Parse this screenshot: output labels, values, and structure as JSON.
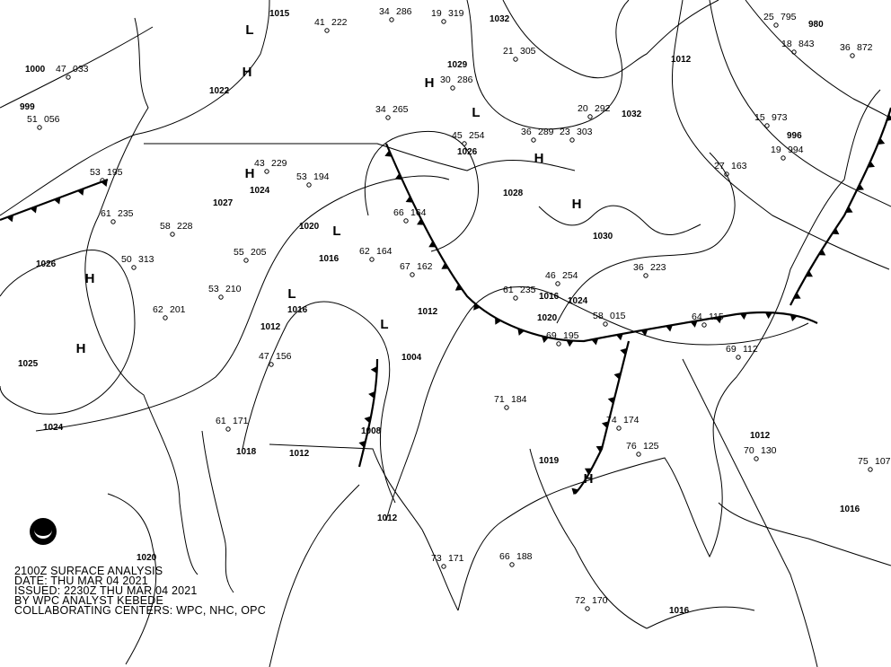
{
  "caption": {
    "line1": "2100Z SURFACE ANALYSIS",
    "line2": "DATE: THU MAR 04 2021",
    "line3": "ISSUED: 2230Z THU MAR 04 2021",
    "line4": "BY WPC ANALYST KEBEDE",
    "line5": "COLLABORATING CENTERS: WPC, NHC, OPC"
  },
  "logo": "NOAA",
  "colors": {
    "lines": "#000000",
    "background": "#ffffff"
  },
  "pressure_centers": [
    "L",
    "H",
    "H",
    "L",
    "H",
    "H",
    "H",
    "L",
    "L",
    "H",
    "H",
    "L",
    "H"
  ],
  "isobar_labels": [
    "1000",
    "999",
    "1026",
    "1025",
    "1024",
    "1022",
    "1027",
    "1024",
    "1020",
    "1016",
    "1016",
    "1012",
    "1008",
    "1004",
    "1012",
    "1016",
    "1020",
    "1024",
    "1028",
    "1030",
    "1032",
    "1029",
    "1026",
    "1015",
    "1032",
    "980",
    "996",
    "1012",
    "1012",
    "1016",
    "1019",
    "1016",
    "1020",
    "1012",
    "1018",
    "1012"
  ],
  "station_values": [
    "47",
    "033",
    "51",
    "056",
    "53",
    "195",
    "61",
    "235",
    "58",
    "228",
    "50",
    "313",
    "55",
    "205",
    "53",
    "210",
    "62",
    "201",
    "47",
    "156",
    "61",
    "171",
    "43",
    "229",
    "53",
    "194",
    "66",
    "164",
    "62",
    "164",
    "67",
    "162",
    "61",
    "235",
    "46",
    "254",
    "58",
    "015",
    "69",
    "195",
    "71",
    "184",
    "74",
    "174",
    "76",
    "125",
    "64",
    "115",
    "69",
    "112",
    "70",
    "130",
    "75",
    "107",
    "73",
    "171",
    "66",
    "188",
    "72",
    "170",
    "36",
    "223",
    "27",
    "163",
    "20",
    "292",
    "23",
    "303",
    "36",
    "289",
    "45",
    "254",
    "30",
    "286",
    "34",
    "265",
    "41",
    "222",
    "34",
    "286",
    "19",
    "319",
    "21",
    "305",
    "25",
    "795",
    "18",
    "843",
    "36",
    "872",
    "15",
    "973",
    "19",
    "994"
  ]
}
